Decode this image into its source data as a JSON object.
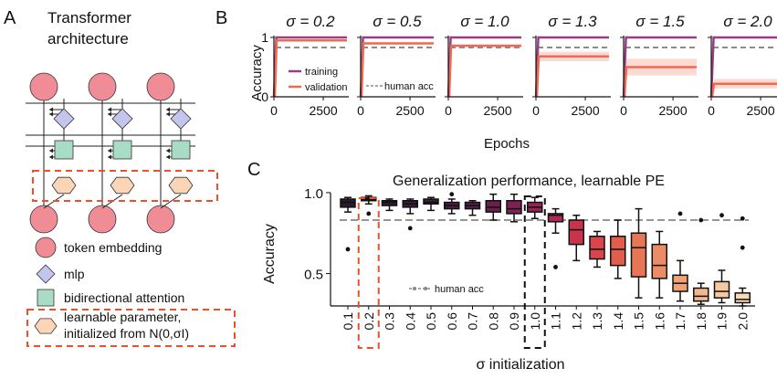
{
  "panel_a": {
    "letter": "A",
    "title_line1": "Transformer",
    "title_line2": "architecture",
    "legend": [
      {
        "label": "token embedding",
        "shape": "circle",
        "color": "#f08c96"
      },
      {
        "label": "mlp",
        "shape": "diamond",
        "color": "#c3c6ec"
      },
      {
        "label": "bidirectional attention",
        "shape": "square",
        "color": "#a9dcc4"
      },
      {
        "label": "learnable parameter,",
        "label2": "initialized from N(0,σI)",
        "shape": "hexagon",
        "color": "#fbd5b5"
      }
    ],
    "highlight_color": "#e8502e"
  },
  "panel_b": {
    "letter": "B",
    "sigmas": [
      "σ = 0.2",
      "σ = 0.5",
      "σ = 1.0",
      "σ = 1.3",
      "σ = 1.5",
      "σ = 2.0"
    ],
    "ylabel": "Accuracy",
    "xlabel": "Epochs",
    "ytick_labels": [
      "0",
      "1"
    ],
    "xtick_labels": [
      "0",
      "2500"
    ],
    "legend_training": "training",
    "legend_validation": "validation",
    "legend_human": "human acc",
    "colors": {
      "training": "#9a3d86",
      "validation": "#ef6a52",
      "human": "#8c8c8c"
    },
    "human_acc": 0.83,
    "validation_final": [
      0.95,
      0.9,
      0.86,
      0.68,
      0.5,
      0.22
    ],
    "validation_band": [
      0.01,
      0.02,
      0.02,
      0.08,
      0.14,
      0.08
    ]
  },
  "panel_c": {
    "letter": "C",
    "title": "Generalization performance, learnable PE",
    "ylabel": "Accuracy",
    "xlabel": "σ initialization",
    "human_label": "human acc",
    "ytick_labels": [
      "0.5",
      "1.0"
    ],
    "highlight_red_index": 1,
    "highlight_black_index": 9
  },
  "chart_data": {
    "type": "box",
    "title": "Generalization performance, learnable PE",
    "xlabel": "σ initialization",
    "ylabel": "Accuracy",
    "ylim": [
      0.3,
      1.05
    ],
    "human_acc": 0.83,
    "categories": [
      "0.1",
      "0.2",
      "0.3",
      "0.4",
      "0.5",
      "0.6",
      "0.7",
      "0.8",
      "0.9",
      "1.0",
      "1.1",
      "1.2",
      "1.3",
      "1.4",
      "1.5",
      "1.6",
      "1.7",
      "1.8",
      "1.9",
      "2.0"
    ],
    "boxes": [
      {
        "min": 0.88,
        "q1": 0.91,
        "median": 0.94,
        "q3": 0.96,
        "max": 0.97,
        "fliers": [
          0.65
        ],
        "color": "#2b1a2e"
      },
      {
        "min": 0.93,
        "q1": 0.95,
        "median": 0.96,
        "q3": 0.97,
        "max": 0.98,
        "fliers": [
          0.87
        ],
        "color": "#2e1b31"
      },
      {
        "min": 0.89,
        "q1": 0.92,
        "median": 0.94,
        "q3": 0.95,
        "max": 0.96,
        "fliers": [],
        "color": "#321c34"
      },
      {
        "min": 0.87,
        "q1": 0.91,
        "median": 0.93,
        "q3": 0.95,
        "max": 0.96,
        "fliers": [
          0.78
        ],
        "color": "#381d38"
      },
      {
        "min": 0.89,
        "q1": 0.93,
        "median": 0.94,
        "q3": 0.96,
        "max": 0.97,
        "fliers": [],
        "color": "#3f1e3c"
      },
      {
        "min": 0.87,
        "q1": 0.9,
        "median": 0.92,
        "q3": 0.94,
        "max": 0.96,
        "fliers": [
          0.99
        ],
        "color": "#4a1f42"
      },
      {
        "min": 0.86,
        "q1": 0.9,
        "median": 0.92,
        "q3": 0.94,
        "max": 0.95,
        "fliers": [],
        "color": "#561f48"
      },
      {
        "min": 0.83,
        "q1": 0.88,
        "median": 0.91,
        "q3": 0.95,
        "max": 0.99,
        "fliers": [],
        "color": "#6a1f4e"
      },
      {
        "min": 0.82,
        "q1": 0.87,
        "median": 0.9,
        "q3": 0.95,
        "max": 0.99,
        "fliers": [],
        "color": "#7f2052"
      },
      {
        "min": 0.84,
        "q1": 0.88,
        "median": 0.91,
        "q3": 0.94,
        "max": 0.97,
        "fliers": [],
        "color": "#962353"
      },
      {
        "min": 0.75,
        "q1": 0.82,
        "median": 0.86,
        "q3": 0.87,
        "max": 0.9,
        "fliers": [
          0.54
        ],
        "color": "#b02a51"
      },
      {
        "min": 0.58,
        "q1": 0.68,
        "median": 0.77,
        "q3": 0.83,
        "max": 0.86,
        "fliers": [],
        "color": "#c9344c"
      },
      {
        "min": 0.54,
        "q1": 0.59,
        "median": 0.65,
        "q3": 0.73,
        "max": 0.76,
        "fliers": [],
        "color": "#d8454a"
      },
      {
        "min": 0.47,
        "q1": 0.55,
        "median": 0.65,
        "q3": 0.73,
        "max": 0.83,
        "fliers": [],
        "color": "#e15e4e"
      },
      {
        "min": 0.35,
        "q1": 0.48,
        "median": 0.66,
        "q3": 0.75,
        "max": 0.9,
        "fliers": [],
        "color": "#e77657"
      },
      {
        "min": 0.35,
        "q1": 0.47,
        "median": 0.55,
        "q3": 0.68,
        "max": 0.76,
        "fliers": [],
        "color": "#ec8c64"
      },
      {
        "min": 0.33,
        "q1": 0.39,
        "median": 0.44,
        "q3": 0.49,
        "max": 0.58,
        "fliers": [
          0.87
        ],
        "color": "#f0a277"
      },
      {
        "min": 0.31,
        "q1": 0.33,
        "median": 0.36,
        "q3": 0.41,
        "max": 0.44,
        "fliers": [
          0.83
        ],
        "color": "#f4b78c"
      },
      {
        "min": 0.32,
        "q1": 0.35,
        "median": 0.39,
        "q3": 0.45,
        "max": 0.52,
        "fliers": [
          0.86
        ],
        "color": "#f7c9a2"
      },
      {
        "min": 0.3,
        "q1": 0.32,
        "median": 0.34,
        "q3": 0.38,
        "max": 0.41,
        "fliers": [
          0.66,
          0.84
        ],
        "color": "#fad8b8"
      }
    ]
  }
}
